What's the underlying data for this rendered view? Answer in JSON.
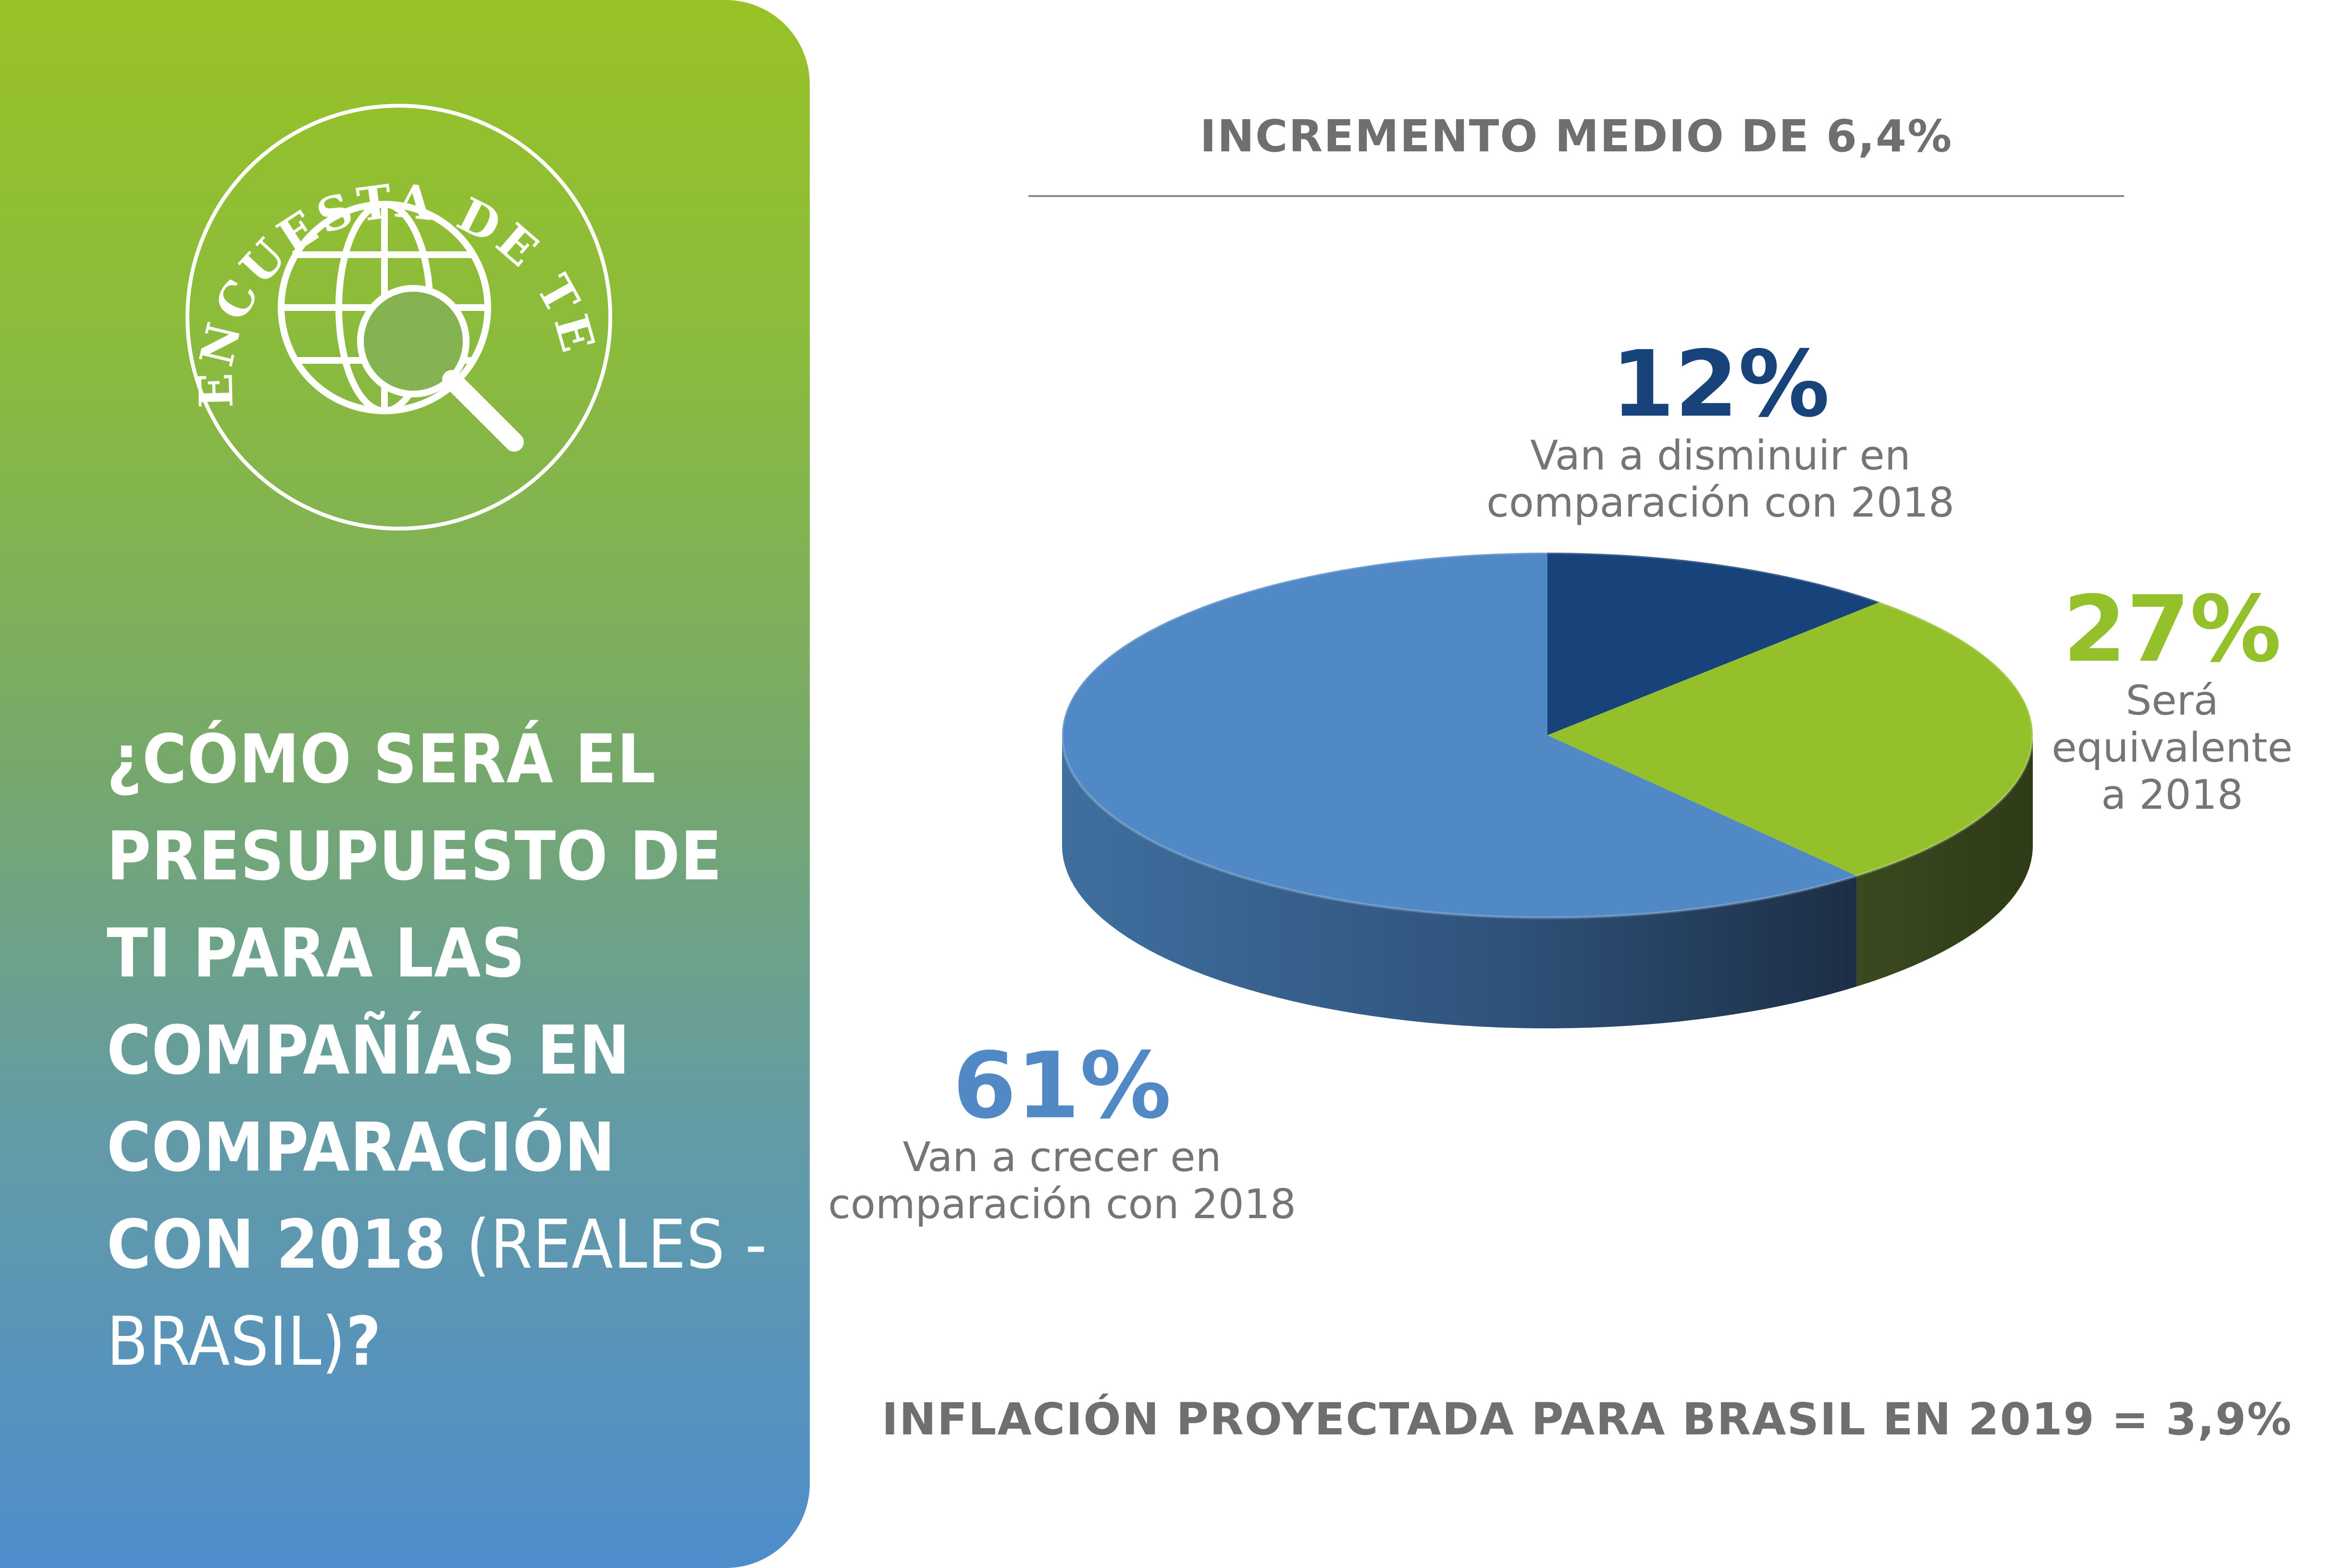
{
  "badge": {
    "ring_text": "ENCUESTA DE TENDENCIAS",
    "icon": "globe-magnifier-icon"
  },
  "question": {
    "bold_part": "¿Cómo será el presupuesto de TI para las compañías en comparación con 2018",
    "light_part": " (reales - Brasil)",
    "end": "?"
  },
  "headline": "INCREMENTO MEDIO DE 6,4%",
  "footer": "INFLACIÓN PROYECTADA PARA BRASIL EN 2019 = 3,9%",
  "colors": {
    "decrease": "#17427a",
    "equal": "#94c02b",
    "increase": "#5089c6",
    "text_gray": "#6f6f6f"
  },
  "chart_data": {
    "type": "pie",
    "title": "",
    "slices": [
      {
        "key": "decrease",
        "value": 12,
        "label": "12%",
        "description_1": "Van a disminuir en",
        "description_2": "comparación con 2018"
      },
      {
        "key": "equal",
        "value": 27,
        "label": "27%",
        "description_1": "Será",
        "description_2": "equivalente",
        "description_3": "a 2018"
      },
      {
        "key": "increase",
        "value": 61,
        "label": "61%",
        "description_1": "Van a crecer en",
        "description_2": "comparación con 2018"
      }
    ]
  }
}
